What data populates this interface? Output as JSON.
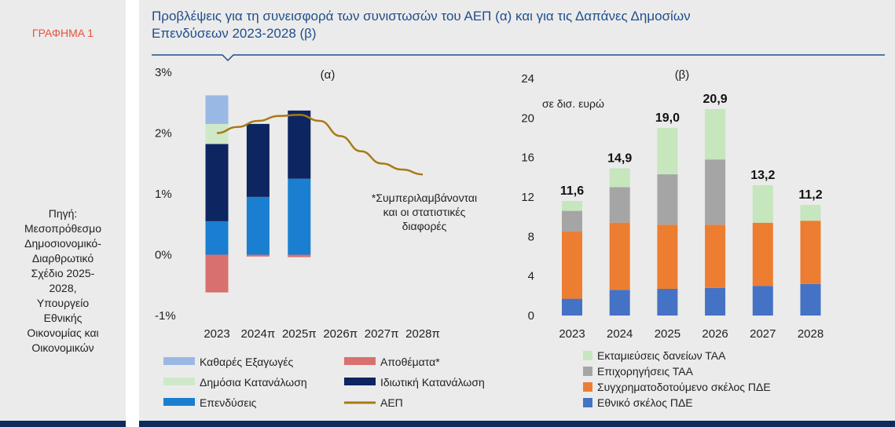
{
  "figure_label": "ΓΡΑΦΗΜΑ 1",
  "source_lines": [
    "Πηγή:",
    "Μεσοπρόθεσμο",
    "Δημοσιονομικό-",
    "Διαρθρωτικό",
    "Σχέδιο 2025-",
    "2028,",
    "Υπουργείο",
    "Εθνικής",
    "Οικονομίας και",
    "Οικονομικών"
  ],
  "title_lines": [
    "Προβλέψεις για τη συνεισφορά των συνιστωσών του ΑΕΠ (α) και για τις Δαπάνες Δημοσίων",
    "Επενδύσεων 2023-2028 (β)"
  ],
  "chart_data": [
    {
      "type": "bar",
      "panel": "(α)",
      "title": "(α)",
      "categories": [
        "2023",
        "2024π",
        "2025π",
        "2026π",
        "2027π",
        "2028π"
      ],
      "y_tick_labels": [
        "3%",
        "2%",
        "1%",
        "0%",
        "-1%"
      ],
      "ylim": [
        -1,
        3
      ],
      "note": [
        "*Συμπεριλαμβάνονται",
        "και οι στατιστικές",
        "διαφορές"
      ],
      "series": [
        {
          "name": "Επενδύσεις",
          "color": "#1a7fd0",
          "values": [
            0.55,
            0.95,
            1.25,
            null,
            null,
            null
          ]
        },
        {
          "name": "Ιδιωτική Κατανάλωση",
          "color": "#0d2560",
          "values": [
            1.27,
            1.2,
            1.12,
            null,
            null,
            null
          ]
        },
        {
          "name": "Δημόσια Κατανάλωση",
          "color": "#cfe8c8",
          "values": [
            0.33,
            0.0,
            0.0,
            null,
            null,
            null
          ]
        },
        {
          "name": "Καθαρές Εξαγωγές",
          "color": "#9ab8e4",
          "values": [
            0.47,
            0.0,
            0.0,
            null,
            null,
            null
          ]
        },
        {
          "name": "Αποθέματα*",
          "color": "#d97070",
          "values": [
            -0.62,
            -0.03,
            -0.04,
            null,
            null,
            null
          ]
        },
        {
          "name": "ΑΕΠ",
          "color": "#a87a14",
          "type": "line",
          "x": [
            0,
            0.5,
            1,
            1.5,
            2,
            2.5,
            3,
            3.5,
            4,
            4.5,
            5
          ],
          "values": [
            2.0,
            2.1,
            2.2,
            2.28,
            2.3,
            2.2,
            1.95,
            1.7,
            1.5,
            1.4,
            1.32
          ]
        }
      ],
      "legend": [
        {
          "label": "Καθαρές Εξαγωγές",
          "kind": "bar",
          "color": "#9ab8e4"
        },
        {
          "label": "Αποθέματα*",
          "kind": "bar",
          "color": "#d97070"
        },
        {
          "label": "Δημόσια Κατανάλωση",
          "kind": "bar",
          "color": "#cfe8c8"
        },
        {
          "label": "Ιδιωτική Κατανάλωση",
          "kind": "bar",
          "color": "#0d2560"
        },
        {
          "label": "Επενδύσεις",
          "kind": "bar",
          "color": "#1a7fd0"
        },
        {
          "label": "ΑΕΠ",
          "kind": "line",
          "color": "#a87a14"
        }
      ]
    },
    {
      "type": "bar",
      "panel": "(β)",
      "title": "(β)",
      "unit_label": "σε δισ. ευρώ",
      "categories": [
        "2023",
        "2024",
        "2025",
        "2026",
        "2027",
        "2028"
      ],
      "y_ticks": [
        "24",
        "20",
        "16",
        "12",
        "8",
        "4",
        "0"
      ],
      "ylim": [
        0,
        24
      ],
      "totals": [
        "11,6",
        "14,9",
        "19,0",
        "20,9",
        "13,2",
        "11,2"
      ],
      "series": [
        {
          "name": "Εθνικό σκέλος ΠΔΕ",
          "color": "#4472c4",
          "values": [
            1.7,
            2.6,
            2.7,
            2.8,
            3.0,
            3.2
          ]
        },
        {
          "name": "Συγχρηματοδοτούμενο σκέλος ΠΔΕ",
          "color": "#ed7d31",
          "values": [
            6.8,
            6.8,
            6.5,
            6.4,
            6.4,
            6.4
          ]
        },
        {
          "name": "Επιχορηγήσεις ΤΑΑ",
          "color": "#a5a5a5",
          "values": [
            2.1,
            3.6,
            5.1,
            6.6,
            0.0,
            0.0
          ]
        },
        {
          "name": "Εκταμιεύσεις δανείων ΤΑΑ",
          "color": "#c6e6bd",
          "values": [
            1.0,
            1.9,
            4.7,
            5.1,
            3.8,
            1.6
          ]
        }
      ],
      "legend": [
        {
          "label": "Εκταμιεύσεις δανείων ΤΑΑ",
          "color": "#c6e6bd"
        },
        {
          "label": "Επιχορηγήσεις ΤΑΑ",
          "color": "#a5a5a5"
        },
        {
          "label": "Συγχρηματοδοτούμενο σκέλος ΠΔΕ",
          "color": "#ed7d31"
        },
        {
          "label": "Εθνικό σκέλος ΠΔΕ",
          "color": "#4472c4"
        }
      ]
    }
  ]
}
